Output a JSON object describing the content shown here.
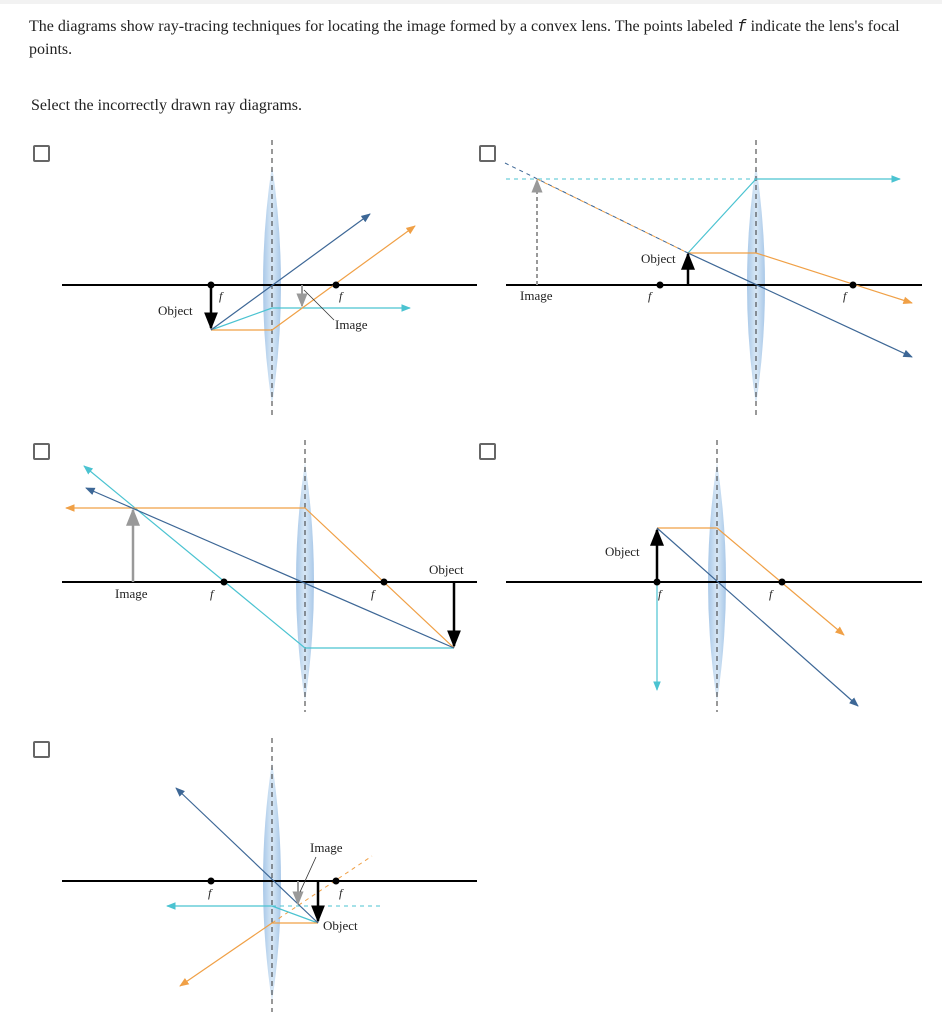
{
  "question": {
    "text_before_symbol": "The diagrams show ray-tracing techniques for locating the image formed by a convex lens. The points labeled ",
    "symbol": "f",
    "text_after_symbol": " indicate the lens's focal points.",
    "instruction": "Select the incorrectly drawn ray diagrams."
  },
  "labels": {
    "object": "Object",
    "image": "Image",
    "focal": "f"
  },
  "options": [
    {
      "checked": false
    },
    {
      "checked": false
    },
    {
      "checked": false
    },
    {
      "checked": false
    },
    {
      "checked": false
    }
  ],
  "colors": {
    "lens": "#bcd6ee",
    "ray_teal": "#4bc3d1",
    "ray_orange": "#f0a046",
    "ray_blue": "#3d6796",
    "image_gray": "#999999",
    "axis": "#000000"
  }
}
